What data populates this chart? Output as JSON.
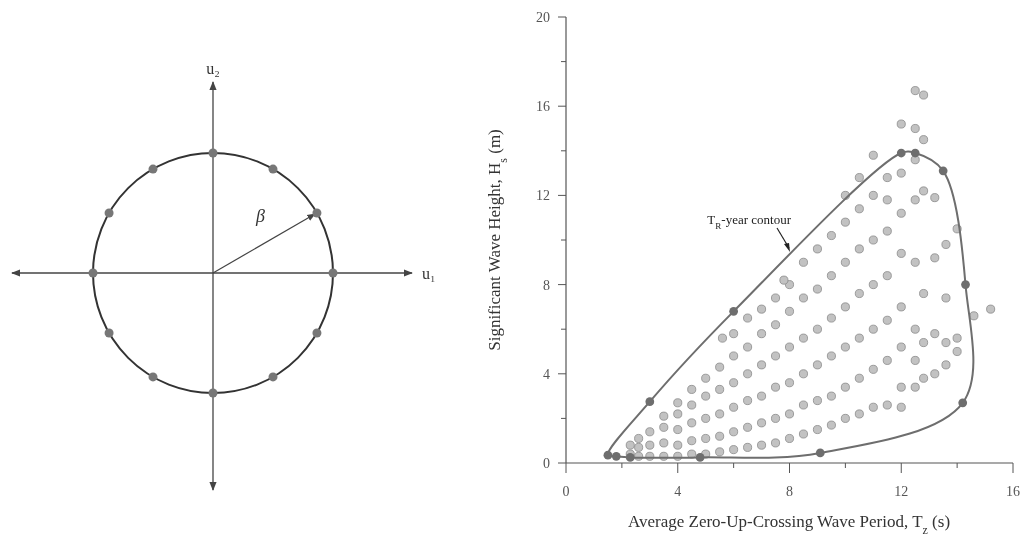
{
  "chart_data": [
    {
      "type": "other",
      "annotations": [
        "u₂",
        "u₁",
        "β"
      ]
    },
    {
      "type": "scatter",
      "xlabel": "Average Zero-Up-Crossing Wave Period, T$_{z}$ (s)",
      "ylabel": "Significant Wave Height, H$_{s}$ (m)",
      "marker": "circle",
      "xlim": [
        0,
        16
      ],
      "ylim": [
        0,
        20
      ],
      "xticks": [
        0,
        {
          "value": 2,
          "label": null
        },
        4,
        {
          "value": 6,
          "label": null
        },
        8,
        {
          "value": 10,
          "label": null
        },
        12,
        {
          "value": 14,
          "label": null
        },
        16
      ],
      "yticks": [
        0,
        {
          "value": 2,
          "label": null
        },
        4,
        {
          "value": 6,
          "label": null
        },
        8,
        {
          "value": 10,
          "label": null
        },
        12,
        {
          "value": 14,
          "label": null
        },
        16,
        {
          "value": 18,
          "label": null
        },
        20
      ],
      "annotations": [
        "T$_{R}$-year contour"
      ],
      "series": [
        {
          "type": "scatter",
          "color": "#c2c2c2",
          "x": [
            2.3,
            2.3,
            2.6,
            2.6,
            2.6,
            3,
            3,
            3,
            3.5,
            3.5,
            3.5,
            3.5,
            4,
            4,
            4,
            4,
            4,
            4.5,
            4.5,
            4.5,
            4.5,
            4.5,
            5,
            5,
            5,
            5,
            5,
            5.5,
            5.5,
            5.5,
            5.5,
            5.5,
            6,
            6,
            6,
            6,
            6,
            6,
            6.5,
            6.5,
            6.5,
            6.5,
            6.5,
            6.5,
            7,
            7,
            7,
            7,
            7,
            7,
            7.5,
            7.5,
            7.5,
            7.5,
            7.5,
            7.5,
            8,
            8,
            8,
            8,
            8,
            8,
            8.5,
            8.5,
            8.5,
            8.5,
            8.5,
            8.5,
            9,
            9,
            9,
            9,
            9,
            9,
            9.5,
            9.5,
            9.5,
            9.5,
            9.5,
            9.5,
            10,
            10,
            10,
            10,
            10,
            10,
            10,
            10.5,
            10.5,
            10.5,
            10.5,
            10.5,
            10.5,
            10.5,
            11,
            11,
            11,
            11,
            11,
            11,
            11,
            11.5,
            11.5,
            11.5,
            11.5,
            11.5,
            11.5,
            11.5,
            12,
            12,
            12,
            12,
            12,
            12,
            12,
            12,
            12.5,
            12.5,
            12.5,
            12.5,
            12.5,
            12.5,
            12.5,
            12.5,
            12.8,
            12.8,
            12.8,
            12.8,
            12.8,
            12.8,
            13.2,
            13.2,
            13.2,
            13.2,
            13.6,
            13.6,
            13.6,
            13.6,
            14,
            14,
            14,
            14.6,
            15.2,
            5.6,
            7.8
          ],
          "values": [
            0.4,
            0.8,
            0.3,
            0.7,
            1.1,
            0.3,
            0.8,
            1.4,
            0.3,
            0.9,
            1.6,
            2.1,
            0.3,
            0.8,
            1.5,
            2.2,
            2.7,
            0.4,
            1,
            1.8,
            2.6,
            3.3,
            0.4,
            1.1,
            2,
            3,
            3.8,
            0.5,
            1.2,
            2.2,
            3.3,
            4.3,
            0.6,
            1.4,
            2.5,
            3.6,
            4.8,
            5.8,
            0.7,
            1.6,
            2.8,
            4,
            5.2,
            6.5,
            0.8,
            1.8,
            3,
            4.4,
            5.8,
            6.9,
            0.9,
            2,
            3.4,
            4.8,
            6.2,
            7.4,
            1.1,
            2.2,
            3.6,
            5.2,
            6.8,
            8,
            1.3,
            2.6,
            4,
            5.6,
            7.4,
            9,
            1.5,
            2.8,
            4.4,
            6,
            7.8,
            9.6,
            1.7,
            3,
            4.8,
            6.5,
            8.4,
            10.2,
            2,
            3.4,
            5.2,
            7,
            9,
            10.8,
            12,
            2.2,
            3.8,
            5.6,
            7.6,
            9.6,
            11.4,
            12.8,
            2.5,
            4.2,
            6,
            8,
            10,
            12,
            13.8,
            2.6,
            4.6,
            6.4,
            8.4,
            10.4,
            11.8,
            12.8,
            2.5,
            3.4,
            5.2,
            7,
            9.4,
            11.2,
            13,
            15.2,
            3.4,
            4.6,
            6,
            9,
            11.8,
            13.6,
            15,
            16.7,
            3.8,
            5.4,
            7.6,
            12.2,
            14.5,
            16.5,
            4,
            5.8,
            9.2,
            11.9,
            4.4,
            5.4,
            7.4,
            9.8,
            5,
            5.6,
            10.5,
            6.6,
            6.9,
            5.6,
            8.2
          ]
        },
        {
          "type": "scatter",
          "color": "#6e6e6e",
          "x": [
            1.5,
            1.8,
            2.3,
            4.8,
            9.1,
            14.2,
            14.3,
            13.5,
            12.5,
            12,
            6,
            3
          ],
          "values": [
            0.35,
            0.3,
            0.25,
            0.25,
            0.45,
            2.7,
            8,
            13.1,
            13.9,
            13.9,
            6.8,
            2.75
          ]
        }
      ]
    }
  ]
}
